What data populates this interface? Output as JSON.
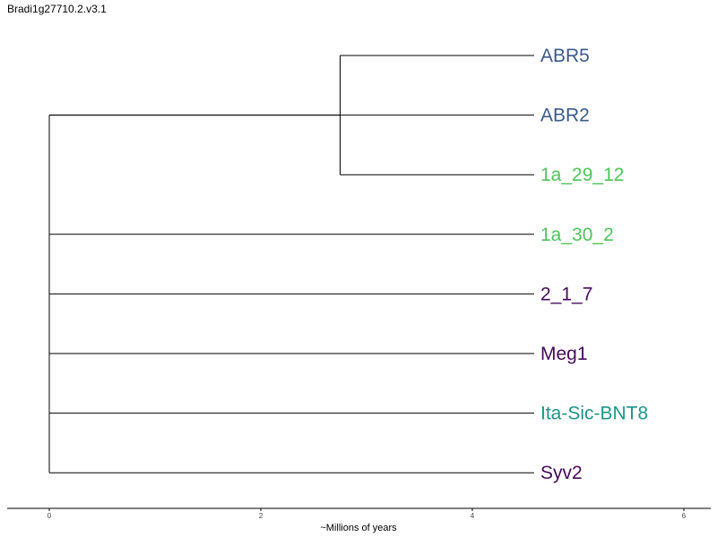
{
  "title": "Bradi1g27710.2.v3.1",
  "chart_data": {
    "type": "dendrogram",
    "xlabel": "~Millions of years",
    "xlim": [
      0,
      6
    ],
    "x_ticks": [
      "0",
      "2",
      "4",
      "6"
    ],
    "leaves": [
      {
        "name": "ABR5",
        "color": "#3b5a8a"
      },
      {
        "name": "ABR2",
        "color": "#3b5a8a"
      },
      {
        "name": "1a_29_12",
        "color": "#4ec45a"
      },
      {
        "name": "1a_30_2",
        "color": "#4ec45a"
      },
      {
        "name": "2_1_7",
        "color": "#440a5a"
      },
      {
        "name": "Meg1",
        "color": "#440a5a"
      },
      {
        "name": "Ita-Sic-BNT8",
        "color": "#1f9488"
      },
      {
        "name": "Syv2",
        "color": "#440a5a"
      }
    ],
    "clades": [
      {
        "members": [
          "ABR5",
          "1a_29_12"
        ],
        "divergence_x": 2.75
      }
    ]
  }
}
